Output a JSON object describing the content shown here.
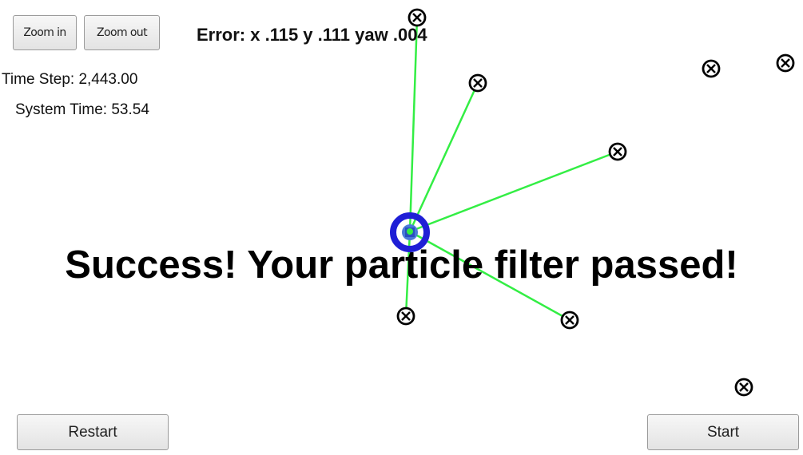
{
  "controls": {
    "zoom_in_label": "Zoom in",
    "zoom_out_label": "Zoom out",
    "restart_label": "Restart",
    "start_label": "Start"
  },
  "status": {
    "time_step": "Time Step: 2,443.00",
    "system_time": "System Time: 53.54"
  },
  "error_readout": "Error: x .115 y .111 yaw .004",
  "result_message": "Success! Your particle filter passed!",
  "colors": {
    "observation_line": "#33ee44",
    "vehicle_ring": "#1f1fd6",
    "landmark": "#000000"
  },
  "icons": {
    "landmark": "landmark-icon",
    "vehicle": "vehicle-icon"
  }
}
